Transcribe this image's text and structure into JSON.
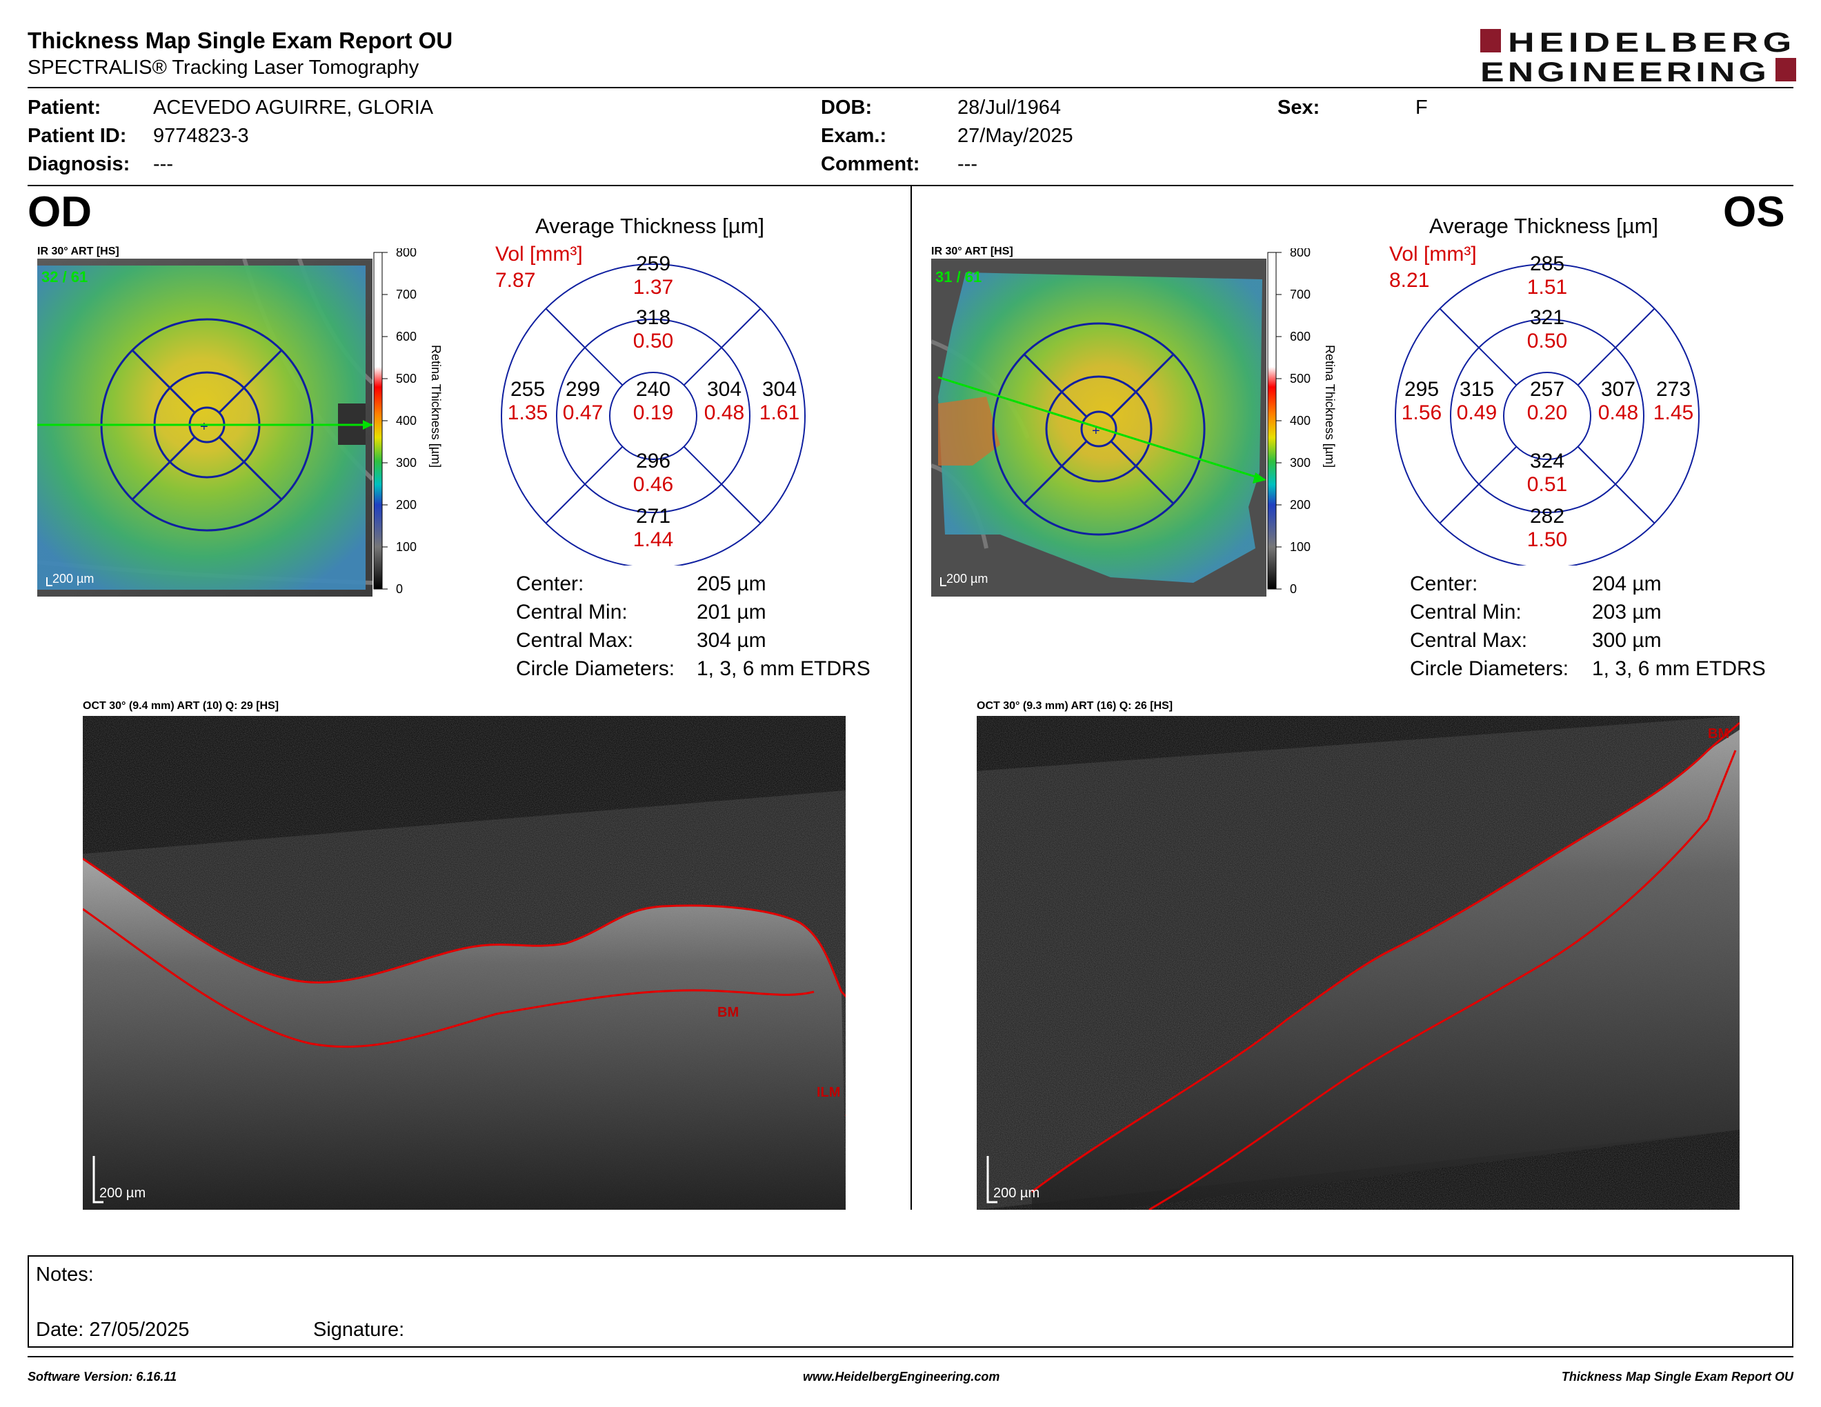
{
  "header": {
    "title": "Thickness Map Single Exam Report OU",
    "subtitle": "SPECTRALIS® Tracking Laser Tomography",
    "logo_line1": "HEIDELBERG",
    "logo_line2": "ENGINEERING",
    "logo_color": "#8b1a2b"
  },
  "patient": {
    "patient_label": "Patient:",
    "patient_value": "ACEVEDO AGUIRRE, GLORIA",
    "id_label": "Patient ID:",
    "id_value": "9774823-3",
    "diagnosis_label": "Diagnosis:",
    "diagnosis_value": "---",
    "dob_label": "DOB:",
    "dob_value": "28/Jul/1964",
    "exam_label": "Exam.:",
    "exam_value": "27/May/2025",
    "comment_label": "Comment:",
    "comment_value": "---",
    "sex_label": "Sex:",
    "sex_value": "F"
  },
  "od": {
    "eye_label": "OD",
    "ir_title": "IR 30° ART [HS]",
    "frames": "32 / 61",
    "scale": "200 µm",
    "avg_title": "Average Thickness [µm]",
    "vol_label": "Vol [mm³]",
    "total_vol": "7.87",
    "sectors": {
      "outer_top": {
        "t": "259",
        "v": "1.37"
      },
      "inner_top": {
        "t": "318",
        "v": "0.50"
      },
      "outer_left": {
        "t": "255",
        "v": "1.35"
      },
      "inner_left": {
        "t": "299",
        "v": "0.47"
      },
      "center": {
        "t": "240",
        "v": "0.19"
      },
      "inner_right": {
        "t": "304",
        "v": "0.48"
      },
      "outer_right": {
        "t": "304",
        "v": "1.61"
      },
      "inner_bottom": {
        "t": "296",
        "v": "0.46"
      },
      "outer_bottom": {
        "t": "271",
        "v": "1.44"
      }
    },
    "stats": {
      "center_label": "Center:",
      "center_value": "205 µm",
      "min_label": "Central Min:",
      "min_value": "201 µm",
      "max_label": "Central Max:",
      "max_value": "304 µm",
      "diam_label": "Circle Diameters:",
      "diam_value": "1, 3, 6 mm ETDRS"
    },
    "oct_title": "OCT 30° (9.4 mm) ART (10) Q: 29 [HS]",
    "oct_scale": "200 µm",
    "oct_labels": {
      "bm": "BM",
      "ilm": "ILM"
    }
  },
  "os": {
    "eye_label": "OS",
    "ir_title": "IR 30° ART [HS]",
    "frames": "31 / 61",
    "scale": "200 µm",
    "avg_title": "Average Thickness [µm]",
    "vol_label": "Vol [mm³]",
    "total_vol": "8.21",
    "sectors": {
      "outer_top": {
        "t": "285",
        "v": "1.51"
      },
      "inner_top": {
        "t": "321",
        "v": "0.50"
      },
      "outer_left": {
        "t": "295",
        "v": "1.56"
      },
      "inner_left": {
        "t": "315",
        "v": "0.49"
      },
      "center": {
        "t": "257",
        "v": "0.20"
      },
      "inner_right": {
        "t": "307",
        "v": "0.48"
      },
      "outer_right": {
        "t": "273",
        "v": "1.45"
      },
      "inner_bottom": {
        "t": "324",
        "v": "0.51"
      },
      "outer_bottom": {
        "t": "282",
        "v": "1.50"
      }
    },
    "stats": {
      "center_label": "Center:",
      "center_value": "204 µm",
      "min_label": "Central Min:",
      "min_value": "203 µm",
      "max_label": "Central Max:",
      "max_value": "300 µm",
      "diam_label": "Circle Diameters:",
      "diam_value": "1, 3, 6 mm ETDRS"
    },
    "oct_title": "OCT 30° (9.3 mm) ART (16) Q: 26 [HS]",
    "oct_scale": "200 µm",
    "oct_labels": {
      "bm": "BM"
    }
  },
  "colorbar": {
    "title": "Retina  Thickness [µm]",
    "ticks": [
      "800",
      "700",
      "600",
      "500",
      "400",
      "300",
      "200",
      "100",
      "0"
    ]
  },
  "notes": {
    "notes_label": "Notes:",
    "date_label": "Date: 27/05/2025",
    "signature_label": "Signature:"
  },
  "footer": {
    "software": "Software Version: 6.16.11",
    "website": "www.HeidelbergEngineering.com",
    "report": "Thickness Map Single Exam Report OU"
  },
  "colors": {
    "sector_red": "#d40000",
    "etdrs_blue": "#1020a0",
    "segmentation_red": "#e00000",
    "scan_green": "#00e000"
  }
}
